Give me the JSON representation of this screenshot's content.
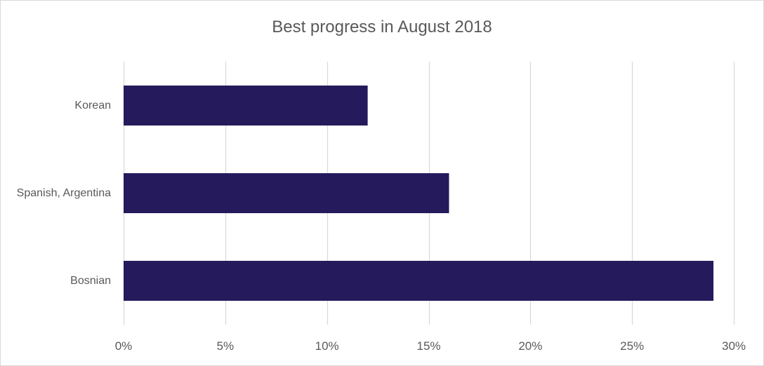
{
  "chart_data": {
    "type": "bar",
    "orientation": "horizontal",
    "title": "Best progress in August 2018",
    "xlabel": "",
    "ylabel": "",
    "categories": [
      "Korean",
      "Spanish, Argentina",
      "Bosnian"
    ],
    "values": [
      12,
      16,
      29
    ],
    "xlim": [
      0,
      30
    ],
    "x_ticks": [
      0,
      5,
      10,
      15,
      20,
      25,
      30
    ],
    "x_tick_labels": [
      "0%",
      "5%",
      "10%",
      "15%",
      "20%",
      "25%",
      "30%"
    ],
    "grid": "vertical",
    "legend": "none",
    "bar_color": "#251a5b",
    "grid_color": "#d9d9d9",
    "text_color": "#595959"
  }
}
